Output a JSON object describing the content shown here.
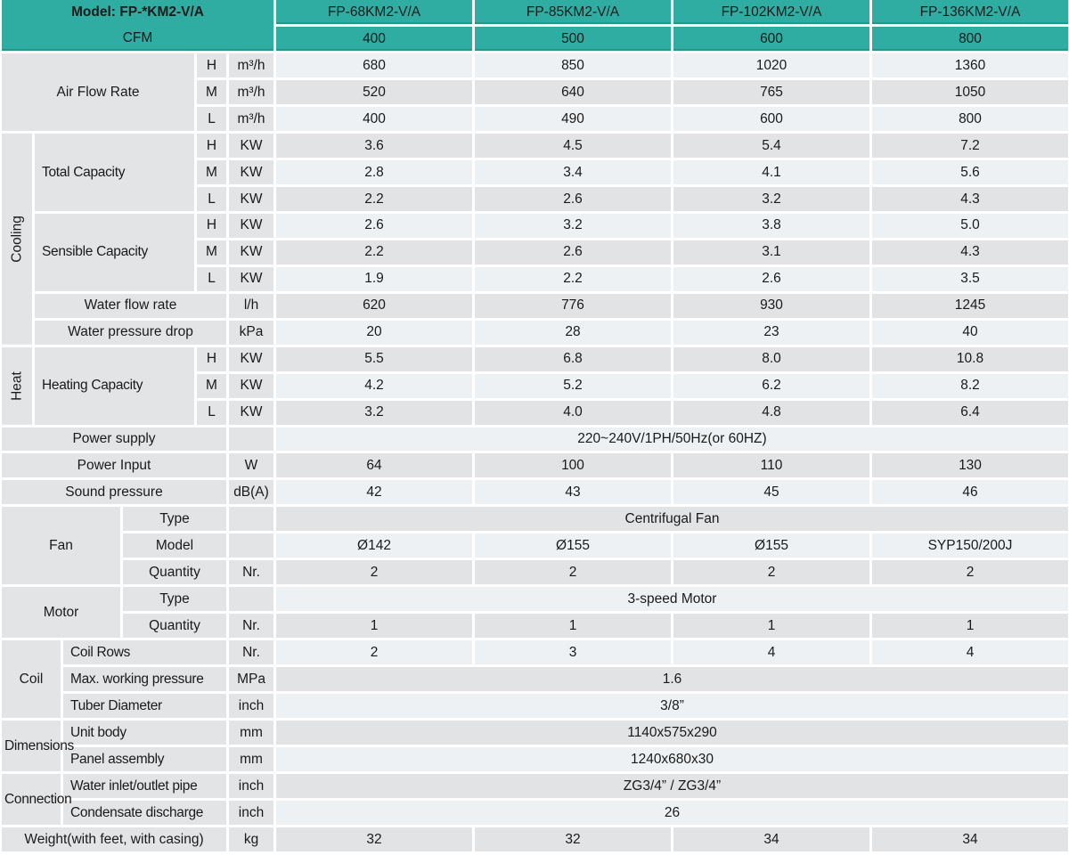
{
  "palette": {
    "teal": "#2fada2",
    "label_bg": "#e3e4e6",
    "row_gray": "#e2e3e4",
    "row_light": "#edf1f4",
    "text": "#1a1a1a",
    "gap": "#ffffff"
  },
  "header": {
    "model_label": "Model: FP-*KM2-V/A",
    "cfm_label": "CFM"
  },
  "cells": [
    {
      "r": 1,
      "c": 7,
      "k": "th",
      "t": "FP-68KM2-V/A",
      "n": "col-header-model-1"
    },
    {
      "r": 1,
      "c": 8,
      "k": "th",
      "t": "FP-85KM2-V/A",
      "n": "col-header-model-2"
    },
    {
      "r": 1,
      "c": 9,
      "k": "th",
      "t": "FP-102KM2-V/A",
      "n": "col-header-model-3"
    },
    {
      "r": 1,
      "c": 10,
      "k": "th",
      "t": "FP-136KM2-V/A",
      "n": "col-header-model-4"
    },
    {
      "r": 2,
      "c": 7,
      "k": "th",
      "t": "400",
      "n": "cfm-value-1"
    },
    {
      "r": 2,
      "c": 8,
      "k": "th",
      "t": "500",
      "n": "cfm-value-2"
    },
    {
      "r": 2,
      "c": 9,
      "k": "th",
      "t": "600",
      "n": "cfm-value-3"
    },
    {
      "r": 2,
      "c": 10,
      "k": "th",
      "t": "800",
      "n": "cfm-value-4"
    },
    {
      "r": 3,
      "c": 1,
      "rs": 3,
      "cs": 4,
      "k": "lab",
      "t": "Air Flow Rate",
      "n": "row-label-air-flow-rate"
    },
    {
      "r": 3,
      "c": 5,
      "k": "lab",
      "t": "H",
      "n": "speed-label-high"
    },
    {
      "r": 3,
      "c": 6,
      "k": "lab",
      "t": "m³/h",
      "n": "unit-label"
    },
    {
      "r": 3,
      "c": 7,
      "k": "vl",
      "t": "680"
    },
    {
      "r": 3,
      "c": 8,
      "k": "vl",
      "t": "850"
    },
    {
      "r": 3,
      "c": 9,
      "k": "vl",
      "t": "1020"
    },
    {
      "r": 3,
      "c": 10,
      "k": "vl",
      "t": "1360"
    },
    {
      "r": 4,
      "c": 5,
      "k": "lab",
      "t": "M",
      "n": "speed-label-medium"
    },
    {
      "r": 4,
      "c": 6,
      "k": "lab",
      "t": "m³/h",
      "n": "unit-label"
    },
    {
      "r": 4,
      "c": 7,
      "k": "vg",
      "t": "520"
    },
    {
      "r": 4,
      "c": 8,
      "k": "vg",
      "t": "640"
    },
    {
      "r": 4,
      "c": 9,
      "k": "vg",
      "t": "765"
    },
    {
      "r": 4,
      "c": 10,
      "k": "vg",
      "t": "1050"
    },
    {
      "r": 5,
      "c": 5,
      "k": "lab",
      "t": "L",
      "n": "speed-label-low"
    },
    {
      "r": 5,
      "c": 6,
      "k": "lab",
      "t": "m³/h",
      "n": "unit-label"
    },
    {
      "r": 5,
      "c": 7,
      "k": "vl",
      "t": "400"
    },
    {
      "r": 5,
      "c": 8,
      "k": "vl",
      "t": "490"
    },
    {
      "r": 5,
      "c": 9,
      "k": "vl",
      "t": "600"
    },
    {
      "r": 5,
      "c": 10,
      "k": "vl",
      "t": "800"
    },
    {
      "r": 6,
      "c": 1,
      "rs": 8,
      "k": "rot",
      "t": "Cooling",
      "n": "group-label-cooling"
    },
    {
      "r": 6,
      "c": 2,
      "rs": 3,
      "cs": 3,
      "k": "lab-l",
      "t": "Total Capacity",
      "n": "row-label-total-capacity"
    },
    {
      "r": 6,
      "c": 5,
      "k": "lab",
      "t": "H",
      "n": "speed-label-high"
    },
    {
      "r": 6,
      "c": 6,
      "k": "lab",
      "t": "KW",
      "n": "unit-label"
    },
    {
      "r": 6,
      "c": 7,
      "k": "vg",
      "t": "3.6"
    },
    {
      "r": 6,
      "c": 8,
      "k": "vg",
      "t": "4.5"
    },
    {
      "r": 6,
      "c": 9,
      "k": "vg",
      "t": "5.4"
    },
    {
      "r": 6,
      "c": 10,
      "k": "vg",
      "t": "7.2"
    },
    {
      "r": 7,
      "c": 5,
      "k": "lab",
      "t": "M",
      "n": "speed-label-medium"
    },
    {
      "r": 7,
      "c": 6,
      "k": "lab",
      "t": "KW",
      "n": "unit-label"
    },
    {
      "r": 7,
      "c": 7,
      "k": "vl",
      "t": "2.8"
    },
    {
      "r": 7,
      "c": 8,
      "k": "vl",
      "t": "3.4"
    },
    {
      "r": 7,
      "c": 9,
      "k": "vl",
      "t": "4.1"
    },
    {
      "r": 7,
      "c": 10,
      "k": "vl",
      "t": "5.6"
    },
    {
      "r": 8,
      "c": 5,
      "k": "lab",
      "t": "L",
      "n": "speed-label-low"
    },
    {
      "r": 8,
      "c": 6,
      "k": "lab",
      "t": "KW",
      "n": "unit-label"
    },
    {
      "r": 8,
      "c": 7,
      "k": "vg",
      "t": "2.2"
    },
    {
      "r": 8,
      "c": 8,
      "k": "vg",
      "t": "2.6"
    },
    {
      "r": 8,
      "c": 9,
      "k": "vg",
      "t": "3.2"
    },
    {
      "r": 8,
      "c": 10,
      "k": "vg",
      "t": "4.3"
    },
    {
      "r": 9,
      "c": 2,
      "rs": 3,
      "cs": 3,
      "k": "lab-l",
      "t": "Sensible Capacity",
      "n": "row-label-sensible-capacity"
    },
    {
      "r": 9,
      "c": 5,
      "k": "lab",
      "t": "H",
      "n": "speed-label-high"
    },
    {
      "r": 9,
      "c": 6,
      "k": "lab",
      "t": "KW",
      "n": "unit-label"
    },
    {
      "r": 9,
      "c": 7,
      "k": "vl",
      "t": "2.6"
    },
    {
      "r": 9,
      "c": 8,
      "k": "vl",
      "t": "3.2"
    },
    {
      "r": 9,
      "c": 9,
      "k": "vl",
      "t": "3.8"
    },
    {
      "r": 9,
      "c": 10,
      "k": "vl",
      "t": "5.0"
    },
    {
      "r": 10,
      "c": 5,
      "k": "lab",
      "t": "M",
      "n": "speed-label-medium"
    },
    {
      "r": 10,
      "c": 6,
      "k": "lab",
      "t": "KW",
      "n": "unit-label"
    },
    {
      "r": 10,
      "c": 7,
      "k": "vg",
      "t": "2.2"
    },
    {
      "r": 10,
      "c": 8,
      "k": "vg",
      "t": "2.6"
    },
    {
      "r": 10,
      "c": 9,
      "k": "vg",
      "t": "3.1"
    },
    {
      "r": 10,
      "c": 10,
      "k": "vg",
      "t": "4.3"
    },
    {
      "r": 11,
      "c": 5,
      "k": "lab",
      "t": "L",
      "n": "speed-label-low"
    },
    {
      "r": 11,
      "c": 6,
      "k": "lab",
      "t": "KW",
      "n": "unit-label"
    },
    {
      "r": 11,
      "c": 7,
      "k": "vl",
      "t": "1.9"
    },
    {
      "r": 11,
      "c": 8,
      "k": "vl",
      "t": "2.2"
    },
    {
      "r": 11,
      "c": 9,
      "k": "vl",
      "t": "2.6"
    },
    {
      "r": 11,
      "c": 10,
      "k": "vl",
      "t": "3.5"
    },
    {
      "r": 12,
      "c": 2,
      "cs": 4,
      "k": "lab",
      "t": "Water flow rate",
      "n": "row-label-water-flow-rate"
    },
    {
      "r": 12,
      "c": 6,
      "k": "lab",
      "t": "l/h",
      "n": "unit-label"
    },
    {
      "r": 12,
      "c": 7,
      "k": "vg",
      "t": "620"
    },
    {
      "r": 12,
      "c": 8,
      "k": "vg",
      "t": "776"
    },
    {
      "r": 12,
      "c": 9,
      "k": "vg",
      "t": "930"
    },
    {
      "r": 12,
      "c": 10,
      "k": "vg",
      "t": "1245"
    },
    {
      "r": 13,
      "c": 2,
      "cs": 4,
      "k": "lab",
      "t": "Water pressure drop",
      "n": "row-label-water-pressure-drop"
    },
    {
      "r": 13,
      "c": 6,
      "k": "lab",
      "t": "kPa",
      "n": "unit-label"
    },
    {
      "r": 13,
      "c": 7,
      "k": "vl",
      "t": "20"
    },
    {
      "r": 13,
      "c": 8,
      "k": "vl",
      "t": "28"
    },
    {
      "r": 13,
      "c": 9,
      "k": "vl",
      "t": "23"
    },
    {
      "r": 13,
      "c": 10,
      "k": "vl",
      "t": "40"
    },
    {
      "r": 14,
      "c": 1,
      "rs": 3,
      "k": "rot",
      "t": "Heat",
      "n": "group-label-heat"
    },
    {
      "r": 14,
      "c": 2,
      "rs": 3,
      "cs": 3,
      "k": "lab-l",
      "t": "Heating Capacity",
      "n": "row-label-heating-capacity"
    },
    {
      "r": 14,
      "c": 5,
      "k": "lab",
      "t": "H",
      "n": "speed-label-high"
    },
    {
      "r": 14,
      "c": 6,
      "k": "lab",
      "t": "KW",
      "n": "unit-label"
    },
    {
      "r": 14,
      "c": 7,
      "k": "vg",
      "t": "5.5"
    },
    {
      "r": 14,
      "c": 8,
      "k": "vg",
      "t": "6.8"
    },
    {
      "r": 14,
      "c": 9,
      "k": "vg",
      "t": "8.0"
    },
    {
      "r": 14,
      "c": 10,
      "k": "vg",
      "t": "10.8"
    },
    {
      "r": 15,
      "c": 5,
      "k": "lab",
      "t": "M",
      "n": "speed-label-medium"
    },
    {
      "r": 15,
      "c": 6,
      "k": "lab",
      "t": "KW",
      "n": "unit-label"
    },
    {
      "r": 15,
      "c": 7,
      "k": "vl",
      "t": "4.2"
    },
    {
      "r": 15,
      "c": 8,
      "k": "vl",
      "t": "5.2"
    },
    {
      "r": 15,
      "c": 9,
      "k": "vl",
      "t": "6.2"
    },
    {
      "r": 15,
      "c": 10,
      "k": "vl",
      "t": "8.2"
    },
    {
      "r": 16,
      "c": 5,
      "k": "lab",
      "t": "L",
      "n": "speed-label-low"
    },
    {
      "r": 16,
      "c": 6,
      "k": "lab",
      "t": "KW",
      "n": "unit-label"
    },
    {
      "r": 16,
      "c": 7,
      "k": "vg",
      "t": "3.2"
    },
    {
      "r": 16,
      "c": 8,
      "k": "vg",
      "t": "4.0"
    },
    {
      "r": 16,
      "c": 9,
      "k": "vg",
      "t": "4.8"
    },
    {
      "r": 16,
      "c": 10,
      "k": "vg",
      "t": "6.4"
    },
    {
      "r": 17,
      "c": 1,
      "cs": 5,
      "k": "lab",
      "t": "Power supply",
      "n": "row-label-power-supply"
    },
    {
      "r": 17,
      "c": 6,
      "k": "lab",
      "t": "",
      "n": "unit-cell-empty"
    },
    {
      "r": 17,
      "c": 7,
      "cs": 4,
      "k": "vl",
      "t": "220~240V/1PH/50Hz(or 60HZ)",
      "n": "value-power-supply"
    },
    {
      "r": 18,
      "c": 1,
      "cs": 5,
      "k": "lab",
      "t": "Power Input",
      "n": "row-label-power-input"
    },
    {
      "r": 18,
      "c": 6,
      "k": "lab",
      "t": "W",
      "n": "unit-label"
    },
    {
      "r": 18,
      "c": 7,
      "k": "vg",
      "t": "64"
    },
    {
      "r": 18,
      "c": 8,
      "k": "vg",
      "t": "100"
    },
    {
      "r": 18,
      "c": 9,
      "k": "vg",
      "t": "110"
    },
    {
      "r": 18,
      "c": 10,
      "k": "vg",
      "t": "130"
    },
    {
      "r": 19,
      "c": 1,
      "cs": 5,
      "k": "lab",
      "t": "Sound pressure",
      "n": "row-label-sound-pressure"
    },
    {
      "r": 19,
      "c": 6,
      "k": "lab",
      "t": "dB(A)",
      "n": "unit-label"
    },
    {
      "r": 19,
      "c": 7,
      "k": "vl",
      "t": "42"
    },
    {
      "r": 19,
      "c": 8,
      "k": "vl",
      "t": "43"
    },
    {
      "r": 19,
      "c": 9,
      "k": "vl",
      "t": "45"
    },
    {
      "r": 19,
      "c": 10,
      "k": "vl",
      "t": "46"
    },
    {
      "r": 20,
      "c": 1,
      "rs": 3,
      "cs": 3,
      "k": "lab",
      "t": "Fan",
      "n": "group-label-fan"
    },
    {
      "r": 20,
      "c": 4,
      "cs": 2,
      "k": "lab",
      "t": "Type",
      "n": "row-label-fan-type"
    },
    {
      "r": 20,
      "c": 6,
      "k": "lab",
      "t": "",
      "n": "unit-cell-empty"
    },
    {
      "r": 20,
      "c": 7,
      "cs": 4,
      "k": "vg",
      "t": "Centrifugal Fan",
      "n": "value-fan-type"
    },
    {
      "r": 21,
      "c": 4,
      "cs": 2,
      "k": "lab",
      "t": "Model",
      "n": "row-label-fan-model"
    },
    {
      "r": 21,
      "c": 6,
      "k": "lab",
      "t": "",
      "n": "unit-cell-empty"
    },
    {
      "r": 21,
      "c": 7,
      "k": "vl",
      "t": "Ø142"
    },
    {
      "r": 21,
      "c": 8,
      "k": "vl",
      "t": "Ø155"
    },
    {
      "r": 21,
      "c": 9,
      "k": "vl",
      "t": "Ø155"
    },
    {
      "r": 21,
      "c": 10,
      "k": "vl",
      "t": "SYP150/200J"
    },
    {
      "r": 22,
      "c": 4,
      "cs": 2,
      "k": "lab",
      "t": "Quantity",
      "n": "row-label-fan-quantity"
    },
    {
      "r": 22,
      "c": 6,
      "k": "lab",
      "t": "Nr.",
      "n": "unit-label"
    },
    {
      "r": 22,
      "c": 7,
      "k": "vg",
      "t": "2"
    },
    {
      "r": 22,
      "c": 8,
      "k": "vg",
      "t": "2"
    },
    {
      "r": 22,
      "c": 9,
      "k": "vg",
      "t": "2"
    },
    {
      "r": 22,
      "c": 10,
      "k": "vg",
      "t": "2"
    },
    {
      "r": 23,
      "c": 1,
      "rs": 2,
      "cs": 3,
      "k": "lab",
      "t": "Motor",
      "n": "group-label-motor"
    },
    {
      "r": 23,
      "c": 4,
      "cs": 2,
      "k": "lab",
      "t": "Type",
      "n": "row-label-motor-type"
    },
    {
      "r": 23,
      "c": 6,
      "k": "lab",
      "t": "",
      "n": "unit-cell-empty"
    },
    {
      "r": 23,
      "c": 7,
      "cs": 4,
      "k": "vl",
      "t": "3-speed Motor",
      "n": "value-motor-type"
    },
    {
      "r": 24,
      "c": 4,
      "cs": 2,
      "k": "lab",
      "t": "Quantity",
      "n": "row-label-motor-quantity"
    },
    {
      "r": 24,
      "c": 6,
      "k": "lab",
      "t": "Nr.",
      "n": "unit-label"
    },
    {
      "r": 24,
      "c": 7,
      "k": "vg",
      "t": "1"
    },
    {
      "r": 24,
      "c": 8,
      "k": "vg",
      "t": "1"
    },
    {
      "r": 24,
      "c": 9,
      "k": "vg",
      "t": "1"
    },
    {
      "r": 24,
      "c": 10,
      "k": "vg",
      "t": "1"
    },
    {
      "r": 25,
      "c": 1,
      "rs": 3,
      "cs": 2,
      "k": "lab",
      "t": "Coil",
      "n": "group-label-coil"
    },
    {
      "r": 25,
      "c": 3,
      "cs": 3,
      "k": "lab-l",
      "t": "Coil Rows",
      "n": "row-label-coil-rows"
    },
    {
      "r": 25,
      "c": 6,
      "k": "lab",
      "t": "Nr.",
      "n": "unit-label"
    },
    {
      "r": 25,
      "c": 7,
      "k": "vl",
      "t": "2"
    },
    {
      "r": 25,
      "c": 8,
      "k": "vl",
      "t": "3"
    },
    {
      "r": 25,
      "c": 9,
      "k": "vl",
      "t": "4"
    },
    {
      "r": 25,
      "c": 10,
      "k": "vl",
      "t": "4"
    },
    {
      "r": 26,
      "c": 3,
      "cs": 3,
      "k": "lab-l",
      "t": "Max. working pressure",
      "n": "row-label-max-working-pressure"
    },
    {
      "r": 26,
      "c": 6,
      "k": "lab",
      "t": "MPa",
      "n": "unit-label"
    },
    {
      "r": 26,
      "c": 7,
      "cs": 4,
      "k": "vg",
      "t": "1.6",
      "n": "value-max-working-pressure"
    },
    {
      "r": 27,
      "c": 3,
      "cs": 3,
      "k": "lab-l",
      "t": "Tuber Diameter",
      "n": "row-label-tuber-diameter"
    },
    {
      "r": 27,
      "c": 6,
      "k": "lab",
      "t": "inch",
      "n": "unit-label"
    },
    {
      "r": 27,
      "c": 7,
      "cs": 4,
      "k": "vl",
      "t": "3/8”",
      "n": "value-tuber-diameter"
    },
    {
      "r": 28,
      "c": 1,
      "rs": 2,
      "cs": 2,
      "k": "lab-ov",
      "t": "Dimensions",
      "n": "group-label-dimensions"
    },
    {
      "r": 28,
      "c": 3,
      "cs": 3,
      "k": "lab-l",
      "t": "Unit body",
      "n": "row-label-unit-body"
    },
    {
      "r": 28,
      "c": 6,
      "k": "lab",
      "t": "mm",
      "n": "unit-label"
    },
    {
      "r": 28,
      "c": 7,
      "cs": 4,
      "k": "vg",
      "t": "1140x575x290",
      "n": "value-unit-body"
    },
    {
      "r": 29,
      "c": 3,
      "cs": 3,
      "k": "lab-l",
      "t": "Panel assembly",
      "n": "row-label-panel-assembly"
    },
    {
      "r": 29,
      "c": 6,
      "k": "lab",
      "t": "mm",
      "n": "unit-label"
    },
    {
      "r": 29,
      "c": 7,
      "cs": 4,
      "k": "vl",
      "t": "1240x680x30",
      "n": "value-panel-assembly"
    },
    {
      "r": 30,
      "c": 1,
      "rs": 2,
      "cs": 2,
      "k": "lab-ov",
      "t": "Connection",
      "n": "group-label-connection"
    },
    {
      "r": 30,
      "c": 3,
      "cs": 3,
      "k": "lab-l",
      "t": "Water inlet/outlet pipe",
      "n": "row-label-water-inlet-outlet"
    },
    {
      "r": 30,
      "c": 6,
      "k": "lab",
      "t": "inch",
      "n": "unit-label"
    },
    {
      "r": 30,
      "c": 7,
      "cs": 4,
      "k": "vg",
      "t": "ZG3/4” / ZG3/4”",
      "n": "value-water-inlet-outlet"
    },
    {
      "r": 31,
      "c": 3,
      "cs": 3,
      "k": "lab-l",
      "t": "Condensate discharge",
      "n": "row-label-condensate-discharge"
    },
    {
      "r": 31,
      "c": 6,
      "k": "lab",
      "t": "inch",
      "n": "unit-label"
    },
    {
      "r": 31,
      "c": 7,
      "cs": 4,
      "k": "vl",
      "t": "26",
      "n": "value-condensate-discharge"
    },
    {
      "r": 32,
      "c": 1,
      "cs": 5,
      "k": "lab",
      "t": "Weight(with feet, with casing)",
      "n": "row-label-weight"
    },
    {
      "r": 32,
      "c": 6,
      "k": "lab",
      "t": "kg",
      "n": "unit-label"
    },
    {
      "r": 32,
      "c": 7,
      "k": "vg",
      "t": "32"
    },
    {
      "r": 32,
      "c": 8,
      "k": "vg",
      "t": "32"
    },
    {
      "r": 32,
      "c": 9,
      "k": "vg",
      "t": "34"
    },
    {
      "r": 32,
      "c": 10,
      "k": "vg",
      "t": "34"
    }
  ]
}
